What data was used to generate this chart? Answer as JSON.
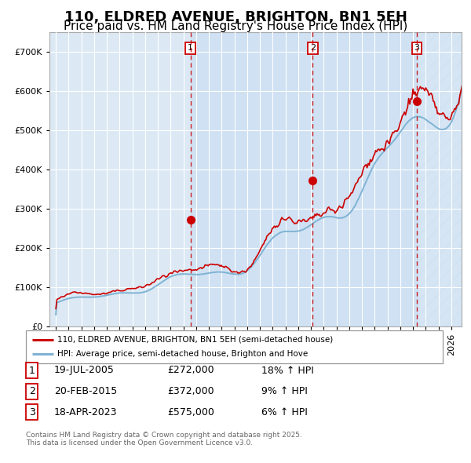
{
  "title": "110, ELDRED AVENUE, BRIGHTON, BN1 5EH",
  "subtitle": "Price paid vs. HM Land Registry's House Price Index (HPI)",
  "background_color": "#ffffff",
  "plot_bg_color": "#dce9f5",
  "legend_label_red": "110, ELDRED AVENUE, BRIGHTON, BN1 5EH (semi-detached house)",
  "legend_label_blue": "HPI: Average price, semi-detached house, Brighton and Hove",
  "footer_text": "Contains HM Land Registry data © Crown copyright and database right 2025.\nThis data is licensed under the Open Government Licence v3.0.",
  "transactions": [
    {
      "num": 1,
      "date": "19-JUL-2005",
      "price": "£272,000",
      "pct": "18% ↑ HPI",
      "year": 2005.55
    },
    {
      "num": 2,
      "date": "20-FEB-2015",
      "price": "£372,000",
      "pct": "9% ↑ HPI",
      "year": 2015.13
    },
    {
      "num": 3,
      "date": "18-APR-2023",
      "price": "£575,000",
      "pct": "6% ↑ HPI",
      "year": 2023.3
    }
  ],
  "trans_prices": [
    272000,
    372000,
    575000
  ],
  "ylim": [
    0,
    750000
  ],
  "xlim_start": 1994.5,
  "xlim_end": 2026.8,
  "red_color": "#cc0000",
  "blue_color": "#7fb3d3",
  "title_fontsize": 13,
  "subtitle_fontsize": 11
}
